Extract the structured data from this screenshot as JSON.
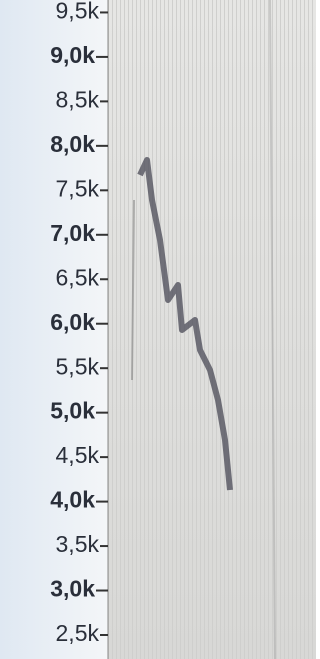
{
  "chart_data": {
    "type": "spectrogram",
    "ylim": [
      2230,
      9640
    ],
    "yticks": [
      {
        "value": 9500,
        "label": "9,5k"
      },
      {
        "value": 9000,
        "label": "9,0k"
      },
      {
        "value": 8500,
        "label": "8,5k"
      },
      {
        "value": 8000,
        "label": "8,0k"
      },
      {
        "value": 7500,
        "label": "7,5k"
      },
      {
        "value": 7000,
        "label": "7,0k"
      },
      {
        "value": 6500,
        "label": "6,5k"
      },
      {
        "value": 6000,
        "label": "6,0k"
      },
      {
        "value": 5500,
        "label": "5,5k"
      },
      {
        "value": 5000,
        "label": "5,0k"
      },
      {
        "value": 4500,
        "label": "4,5k"
      },
      {
        "value": 4000,
        "label": "4,0k"
      },
      {
        "value": 3500,
        "label": "3,5k"
      },
      {
        "value": 3000,
        "label": "3,0k"
      },
      {
        "value": 2500,
        "label": "2,5k"
      }
    ]
  }
}
